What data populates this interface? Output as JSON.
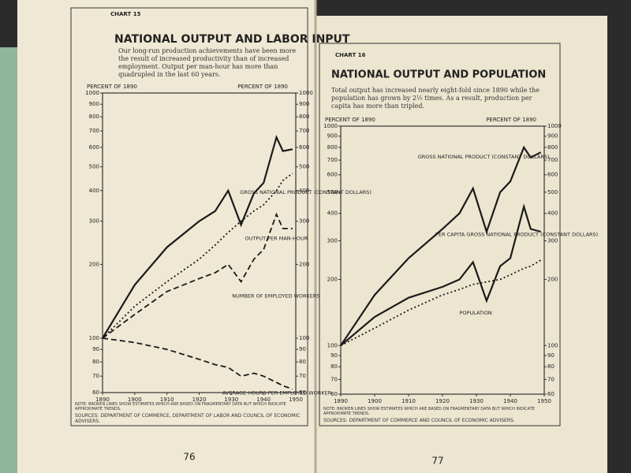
{
  "chart_data": [
    {
      "type": "line",
      "label": "CHART 15",
      "title": "NATIONAL OUTPUT AND LABOR INPUT",
      "subtitle": "Our long-run production achievements have been more the result of increased productivity than of increased employment. Output per man-hour has more than quadrupled in the last 60 years.",
      "y_label": "PERCENT OF 1890",
      "y2_label": "PERCENT OF 1890",
      "log_scale": true,
      "x": [
        1890,
        1900,
        1910,
        1920,
        1925,
        1929,
        1933,
        1937,
        1940,
        1944,
        1946,
        1949
      ],
      "xlim": [
        1890,
        1950
      ],
      "xticks": [
        1890,
        1900,
        1910,
        1920,
        1930,
        1940,
        1950
      ],
      "ylim": [
        60,
        1000
      ],
      "yticks": [
        60,
        70,
        80,
        90,
        100,
        200,
        300,
        400,
        500,
        600,
        700,
        800,
        900,
        1000
      ],
      "y2lim": [
        60,
        1000
      ],
      "y2ticks": [
        60,
        70,
        80,
        90,
        100,
        200,
        300,
        400,
        500,
        600,
        700,
        800,
        900,
        1000
      ],
      "series": [
        {
          "name": "GROSS NATIONAL PRODUCT (CONSTANT DOLLARS)",
          "color": "#1a1a1a",
          "line_style": "solid",
          "values": [
            100,
            165,
            235,
            300,
            330,
            400,
            290,
            390,
            430,
            660,
            580,
            590
          ]
        },
        {
          "name": "OUTPUT PER MAN-HOUR",
          "color": "#1a1a1a",
          "line_style": "dotted",
          "values": [
            100,
            135,
            170,
            210,
            240,
            270,
            300,
            330,
            350,
            400,
            440,
            470
          ]
        },
        {
          "name": "NUMBER OF EMPLOYED WORKERS",
          "color": "#1a1a1a",
          "line_style": "dashed",
          "values": [
            100,
            125,
            155,
            175,
            185,
            200,
            170,
            210,
            230,
            320,
            280,
            280
          ]
        },
        {
          "name": "AVERAGE HOURS PER EMPLOYED WORKER",
          "color": "#1a1a1a",
          "line_style": "dashed",
          "values": [
            100,
            96,
            90,
            82,
            78,
            76,
            70,
            72,
            70,
            66,
            64,
            62
          ]
        }
      ],
      "note": "NOTE: BROKEN LINES SHOW ESTIMATES WHICH ARE BASED ON FRAGMENTARY DATA BUT WHICH INDICATE APPROXIMATE TRENDS.",
      "sources": "SOURCES: DEPARTMENT OF COMMERCE, DEPARTMENT OF LABOR AND COUNCIL OF ECONOMIC ADVISERS.",
      "page_number": "76"
    },
    {
      "type": "line",
      "label": "CHART 16",
      "title": "NATIONAL OUTPUT AND POPULATION",
      "subtitle": "Total output has increased nearly eight-fold since 1890 while the population has grown by 2½ times. As a result, production per capita has more than tripled.",
      "y_label": "PERCENT OF 1890",
      "y2_label": "PERCENT OF 1890",
      "log_scale": true,
      "x": [
        1890,
        1900,
        1910,
        1920,
        1925,
        1929,
        1933,
        1937,
        1940,
        1944,
        1946,
        1949
      ],
      "xlim": [
        1890,
        1950
      ],
      "xticks": [
        1890,
        1900,
        1910,
        1920,
        1930,
        1940,
        1950
      ],
      "ylim": [
        60,
        1000
      ],
      "yticks": [
        60,
        70,
        80,
        90,
        100,
        200,
        300,
        400,
        500,
        600,
        700,
        800,
        900,
        1000
      ],
      "y2lim": [
        60,
        1000
      ],
      "y2ticks": [
        60,
        70,
        80,
        90,
        100,
        200,
        300,
        400,
        500,
        600,
        700,
        800,
        900,
        1000
      ],
      "series": [
        {
          "name": "GROSS NATIONAL PRODUCT (CONSTANT DOLLARS)",
          "color": "#1a1a1a",
          "line_style": "solid",
          "values": [
            100,
            170,
            250,
            340,
            400,
            520,
            330,
            500,
            560,
            800,
            720,
            760
          ]
        },
        {
          "name": "PER CAPITA GROSS NATIONAL PRODUCT (CONSTANT DOLLARS)",
          "color": "#1a1a1a",
          "line_style": "solid",
          "values": [
            100,
            135,
            165,
            185,
            200,
            240,
            160,
            230,
            250,
            430,
            340,
            330
          ]
        },
        {
          "name": "POPULATION",
          "color": "#1a1a1a",
          "line_style": "dotted",
          "values": [
            100,
            120,
            145,
            170,
            180,
            190,
            195,
            200,
            210,
            225,
            230,
            245
          ]
        }
      ],
      "note": "NOTE: BROKEN LINES SHOW ESTIMATES WHICH ARE BASED ON FRAGMENTARY DATA BUT WHICH INDICATE APPROXIMATE TRENDS.",
      "sources": "SOURCES: DEPARTMENT OF COMMERCE AND COUNCIL OF ECONOMIC ADVISERS.",
      "page_number": "77"
    }
  ]
}
